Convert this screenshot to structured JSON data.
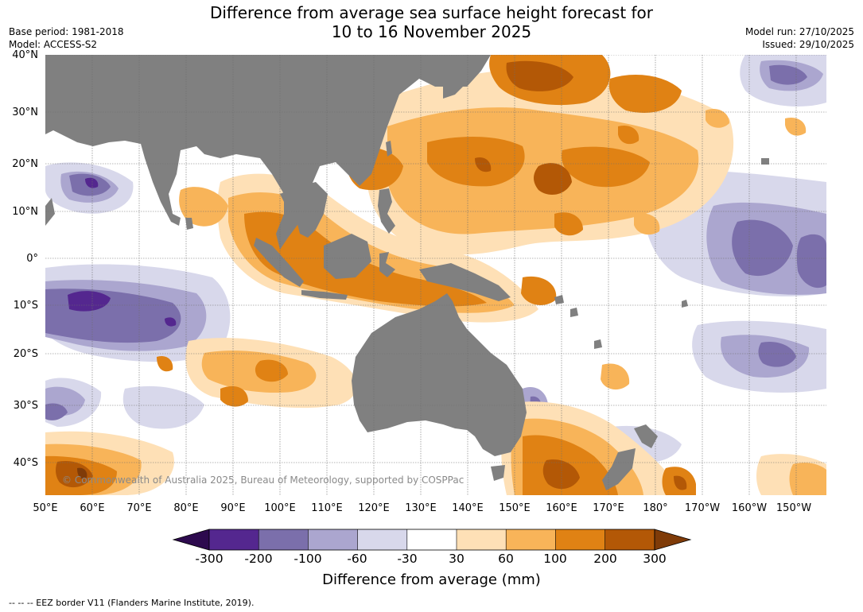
{
  "title_line1": "Difference from average sea surface height forecast for",
  "title_line2": "10 to 16 November 2025",
  "base_period": "Base period: 1981-2018",
  "model": "Model: ACCESS-S2",
  "model_run": "Model run: 27/10/2025",
  "issued": "Issued: 29/10/2025",
  "credit": "© Commonwealth of Australia 2025, Bureau of Meteorology, supported by COSPPac",
  "lat_labels": [
    "40°N",
    "30°N",
    "20°N",
    "10°N",
    "0°",
    "10°S",
    "20°S",
    "30°S",
    "40°S"
  ],
  "lon_labels": [
    "50°E",
    "60°E",
    "70°E",
    "80°E",
    "90°E",
    "100°E",
    "110°E",
    "120°E",
    "130°E",
    "140°E",
    "150°E",
    "160°E",
    "170°E",
    "180°",
    "170°W",
    "160°W",
    "150°W"
  ],
  "colorbar": {
    "title": "Difference from average (mm)",
    "tick_labels": [
      "-300",
      "-200",
      "-100",
      "-60",
      "-30",
      "30",
      "60",
      "100",
      "200",
      "300"
    ],
    "colors": {
      "below_min": "#2d0a4e",
      "n300_n200": "#54278f",
      "n200_n100": "#7b6fab",
      "n100_n60": "#aba6cf",
      "n60_n30": "#d8d8eb",
      "n30_30": "#ffffff",
      "p30_p60": "#fee0b6",
      "p60_p100": "#f8b459",
      "p100_p200": "#e08214",
      "p200_p300": "#b35806",
      "above_max": "#7f3b08"
    }
  },
  "land_color": "#808080",
  "footer": "--  --  -- EEZ border V11 (Flanders Marine Institute, 2019)."
}
